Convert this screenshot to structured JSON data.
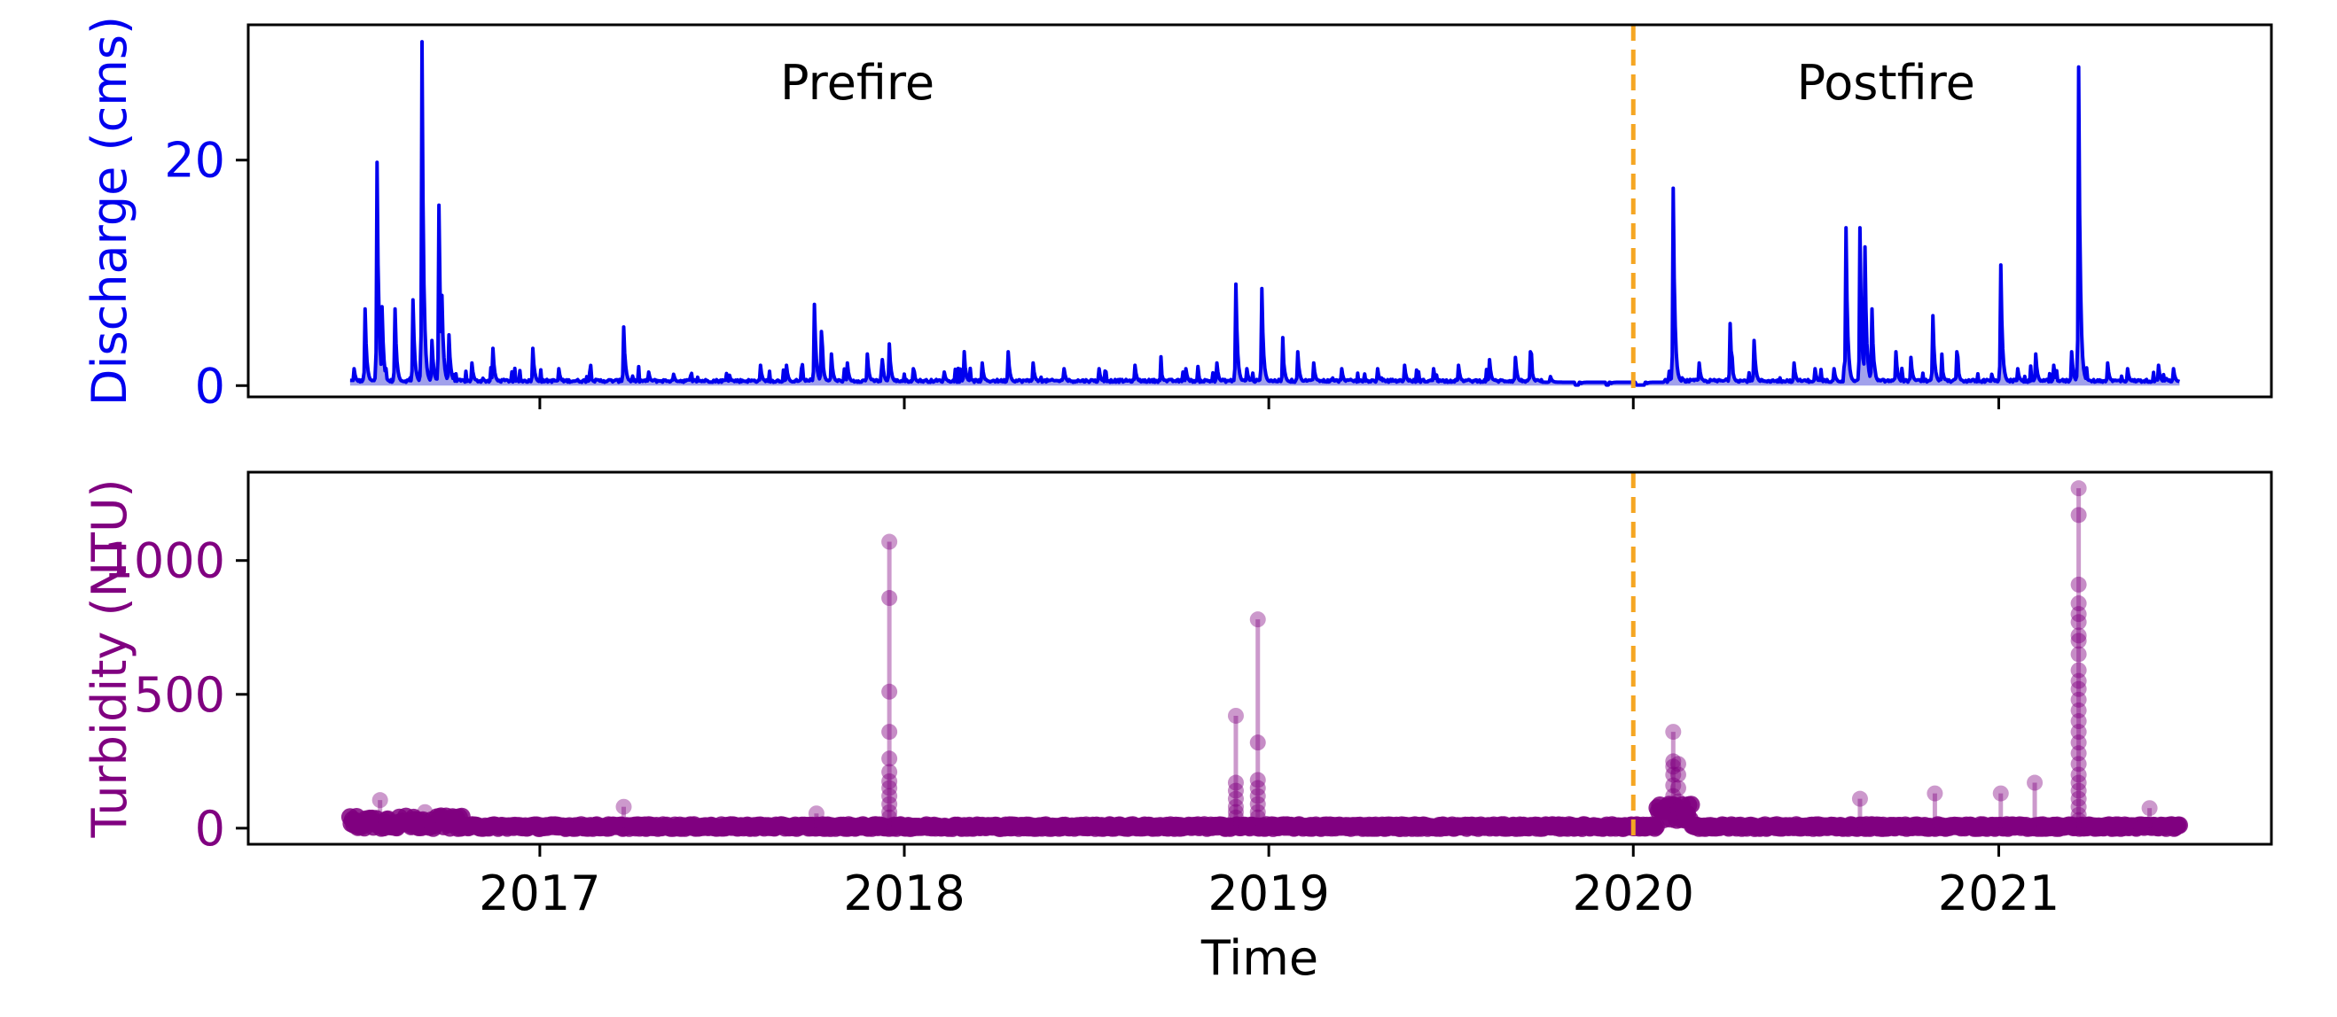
{
  "colors": {
    "discharge": "#0000ee",
    "discharge_fill": "#8a8ae6",
    "turbidity": "#800080",
    "fire_line": "#f5a623",
    "axis": "#000000"
  },
  "chart_data": [
    {
      "type": "line",
      "xlabel": "",
      "ylabel": "Discharge (cms)",
      "xlim": [
        "2016-03-15",
        "2021-10-01"
      ],
      "ylim": [
        -1,
        32
      ],
      "yticks": [
        0,
        20
      ],
      "xticks": [
        "2017",
        "2018",
        "2019",
        "2020",
        "2021"
      ],
      "xticks_labeled": false,
      "annotations": [
        {
          "text": "Prefire",
          "x": "2017-11-15",
          "y": 26.8
        },
        {
          "text": "Postfire",
          "x": "2020-09-10",
          "y": 26.8
        }
      ],
      "vline": {
        "x": "2020-01-01",
        "style": "dashed"
      },
      "fill_under": true,
      "baseline": 0.3,
      "series": [
        {
          "name": "",
          "peaks": [
            [
              "2016-06-29",
              1.5
            ],
            [
              "2016-07-10",
              6.8
            ],
            [
              "2016-07-22",
              19.8
            ],
            [
              "2016-07-27",
              7.0
            ],
            [
              "2016-08-09",
              6.8
            ],
            [
              "2016-08-27",
              7.6
            ],
            [
              "2016-09-05",
              30.5
            ],
            [
              "2016-09-15",
              4.0
            ],
            [
              "2016-09-22",
              16.0
            ],
            [
              "2016-09-25",
              8.0
            ],
            [
              "2016-10-02",
              4.5
            ],
            [
              "2016-10-25",
              2.0
            ],
            [
              "2016-11-15",
              3.3
            ],
            [
              "2016-12-25",
              3.3
            ],
            [
              "2017-01-20",
              1.5
            ],
            [
              "2017-02-20",
              1.2
            ],
            [
              "2017-03-26",
              5.2
            ],
            [
              "2017-04-20",
              1.2
            ],
            [
              "2017-05-15",
              1.0
            ],
            [
              "2017-07-10",
              0.9
            ],
            [
              "2017-08-10",
              1.8
            ],
            [
              "2017-09-05",
              1.8
            ],
            [
              "2017-09-20",
              1.5
            ],
            [
              "2017-10-03",
              7.2
            ],
            [
              "2017-10-10",
              4.8
            ],
            [
              "2017-10-20",
              2.8
            ],
            [
              "2017-11-05",
              2.0
            ],
            [
              "2017-11-25",
              2.8
            ],
            [
              "2017-12-10",
              2.3
            ],
            [
              "2017-12-17",
              3.7
            ],
            [
              "2018-01-10",
              1.5
            ],
            [
              "2018-02-10",
              1.2
            ],
            [
              "2018-03-02",
              2.8
            ],
            [
              "2018-03-20",
              2.0
            ],
            [
              "2018-04-15",
              3.0
            ],
            [
              "2018-05-10",
              2.0
            ],
            [
              "2018-06-10",
              1.5
            ],
            [
              "2018-07-15",
              1.5
            ],
            [
              "2018-08-20",
              1.8
            ],
            [
              "2018-09-15",
              1.5
            ],
            [
              "2018-10-10",
              1.5
            ],
            [
              "2018-11-10",
              2.0
            ],
            [
              "2018-11-29",
              9.0
            ],
            [
              "2018-12-10",
              1.5
            ],
            [
              "2018-12-25",
              8.6
            ],
            [
              "2019-01-15",
              3.5
            ],
            [
              "2019-01-30",
              3.0
            ],
            [
              "2019-02-15",
              2.0
            ],
            [
              "2019-03-15",
              1.5
            ],
            [
              "2019-04-20",
              1.5
            ],
            [
              "2019-05-17",
              1.8
            ],
            [
              "2019-06-15",
              1.5
            ],
            [
              "2019-07-10",
              1.8
            ],
            [
              "2019-08-10",
              2.3
            ],
            [
              "2019-09-05",
              2.5
            ],
            [
              "2019-09-20",
              3.0
            ],
            [
              "2019-10-10",
              0.8
            ],
            [
              "2019-11-10",
              0.2
            ],
            [
              "2019-12-10",
              0.2
            ],
            [
              "2020-01-15",
              0.2
            ],
            [
              "2020-02-10",
              17.5
            ],
            [
              "2020-03-07",
              2.0
            ],
            [
              "2020-04-07",
              5.5
            ],
            [
              "2020-05-01",
              4.0
            ],
            [
              "2020-06-10",
              2.0
            ],
            [
              "2020-07-01",
              1.5
            ],
            [
              "2020-07-20",
              1.5
            ],
            [
              "2020-08-01",
              14.0
            ],
            [
              "2020-08-15",
              14.0
            ],
            [
              "2020-08-20",
              12.3
            ],
            [
              "2020-08-27",
              6.8
            ],
            [
              "2020-09-20",
              3.0
            ],
            [
              "2020-10-05",
              2.5
            ],
            [
              "2020-10-27",
              6.2
            ],
            [
              "2020-11-05",
              2.0
            ],
            [
              "2020-11-20",
              3.0
            ],
            [
              "2020-12-25",
              1.0
            ],
            [
              "2021-01-03",
              10.7
            ],
            [
              "2021-01-20",
              1.5
            ],
            [
              "2021-02-07",
              2.8
            ],
            [
              "2021-02-25",
              1.8
            ],
            [
              "2021-03-15",
              3.0
            ],
            [
              "2021-03-22",
              28.2
            ],
            [
              "2021-04-20",
              2.0
            ],
            [
              "2021-05-10",
              1.5
            ],
            [
              "2021-06-10",
              1.8
            ],
            [
              "2021-06-25",
              1.5
            ]
          ]
        }
      ]
    },
    {
      "type": "scatter",
      "xlabel": "Time",
      "ylabel": "Turbidity (NTU)",
      "xlim": [
        "2016-03-15",
        "2021-10-01"
      ],
      "ylim": [
        -60,
        1330
      ],
      "yticks": [
        0,
        500,
        1000
      ],
      "xticks": [
        "2017",
        "2018",
        "2019",
        "2020",
        "2021"
      ],
      "vline": {
        "x": "2020-01-01",
        "style": "dashed"
      },
      "series": [
        {
          "name": "",
          "stems": [
            [
              "2016-07-25",
              105
            ],
            [
              "2016-09-08",
              60
            ],
            [
              "2017-03-26",
              80
            ],
            [
              "2017-10-05",
              55
            ],
            [
              "2017-12-17",
              1070
            ],
            [
              "2018-11-29",
              420
            ],
            [
              "2018-12-21",
              780
            ],
            [
              "2020-02-10",
              360
            ],
            [
              "2020-08-15",
              110
            ],
            [
              "2020-10-29",
              130
            ],
            [
              "2021-01-03",
              130
            ],
            [
              "2021-02-06",
              170
            ],
            [
              "2021-03-22",
              1270
            ],
            [
              "2021-06-01",
              75
            ]
          ],
          "stem_points": [
            [
              "2017-12-17",
              [
                860,
                510,
                360,
                260,
                210,
                175,
                150,
                120,
                90,
                60,
                40
              ]
            ],
            [
              "2018-11-29",
              [
                170,
                140,
                110,
                80,
                60,
                40
              ]
            ],
            [
              "2018-12-21",
              [
                320,
                180,
                150,
                120,
                90,
                60,
                40
              ]
            ],
            [
              "2020-02-10",
              [
                250,
                230,
                200,
                160,
                120,
                90,
                70,
                50
              ]
            ],
            [
              "2020-02-15",
              [
                240,
                200,
                150,
                100,
                70,
                40
              ]
            ],
            [
              "2021-03-22",
              [
                1170,
                910,
                840,
                800,
                770,
                720,
                700,
                650,
                590,
                550,
                520,
                480,
                440,
                400,
                360,
                320,
                280,
                240,
                200,
                170,
                140,
                110,
                80,
                50,
                30
              ]
            ]
          ]
        }
      ]
    }
  ]
}
